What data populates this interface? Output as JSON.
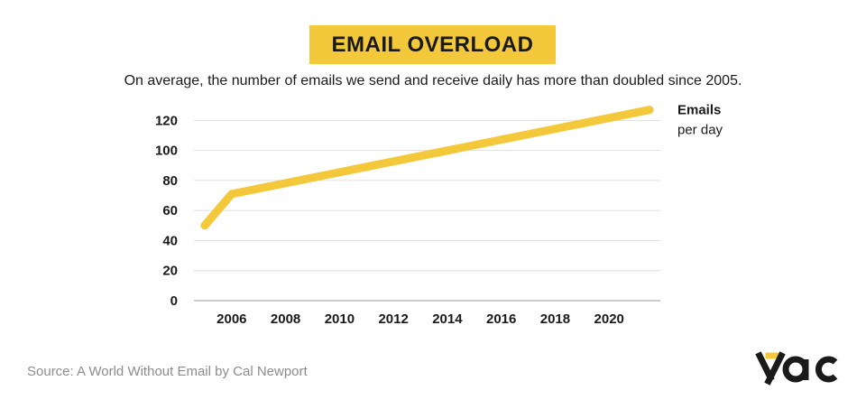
{
  "title": "EMAIL OVERLOAD",
  "subtitle": "On average, the number of emails we send and receive daily has more than doubled since 2005.",
  "source": "Source: A World Without Email by Cal Newport",
  "logo_text": "yac",
  "colors": {
    "accent": "#f3c83a",
    "line": "#f3c83a",
    "grid": "#e0e0e0",
    "text": "#1a1a1a",
    "source_text": "#8c8c8c"
  },
  "chart_data": {
    "type": "line",
    "title": "EMAIL OVERLOAD",
    "xlabel": "",
    "ylabel": "",
    "series": [
      {
        "name_line1": "Emails",
        "name_line2": "per day",
        "x": [
          2005,
          2006,
          2021.5
        ],
        "y": [
          50,
          71,
          127
        ]
      }
    ],
    "x_ticks": [
      2006,
      2008,
      2010,
      2012,
      2014,
      2016,
      2018,
      2020
    ],
    "y_ticks": [
      0,
      20,
      40,
      60,
      80,
      100,
      120
    ],
    "xlim": [
      2004.6,
      2021.9
    ],
    "ylim": [
      0,
      128
    ],
    "grid": "horizontal"
  }
}
